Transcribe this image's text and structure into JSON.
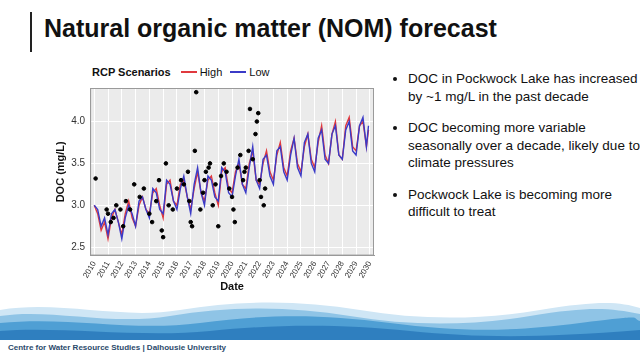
{
  "slide": {
    "title": "Natural organic matter (NOM) forecast",
    "bullets": [
      "DOC in Pockwock Lake has increased by ~1 mg/L in the past decade",
      "DOC becoming more variable seasonally over a decade, likely due to climate pressures",
      "Pockwock Lake is becoming more difficult to treat"
    ],
    "footer": "Centre for Water Resource Studies | Dalhousie University"
  },
  "chart_data": {
    "type": "line",
    "legend_title": "RCP Scenarios",
    "legend": "top",
    "x_label": "Date",
    "y_label": "DOC (mg/L)",
    "grid": true,
    "xlim": [
      2009.7,
      2030.3
    ],
    "xticks": [
      2010,
      2011,
      2012,
      2013,
      2014,
      2015,
      2016,
      2017,
      2018,
      2019,
      2020,
      2021,
      2022,
      2023,
      2024,
      2025,
      2026,
      2027,
      2028,
      2029,
      2030
    ],
    "ylim": [
      2.4,
      4.4
    ],
    "yticks": [
      2.5,
      {
        "value": 3,
        "label": "3.0"
      },
      3.5,
      {
        "value": 4,
        "label": "4.0"
      }
    ],
    "x": [
      2010,
      2010.25,
      2010.5,
      2010.75,
      2011,
      2011.25,
      2011.5,
      2011.75,
      2012,
      2012.25,
      2012.5,
      2012.75,
      2013,
      2013.25,
      2013.5,
      2013.75,
      2014,
      2014.25,
      2014.5,
      2014.75,
      2015,
      2015.25,
      2015.5,
      2015.75,
      2016,
      2016.25,
      2016.5,
      2016.75,
      2017,
      2017.25,
      2017.5,
      2017.75,
      2018,
      2018.25,
      2018.5,
      2018.75,
      2019,
      2019.25,
      2019.5,
      2019.75,
      2020,
      2020.25,
      2020.5,
      2020.75,
      2021,
      2021.25,
      2021.5,
      2021.75,
      2022,
      2022.25,
      2022.5,
      2022.75,
      2023,
      2023.25,
      2023.5,
      2023.75,
      2024,
      2024.25,
      2024.5,
      2024.75,
      2025,
      2025.25,
      2025.5,
      2025.75,
      2026,
      2026.25,
      2026.5,
      2026.75,
      2027,
      2027.25,
      2027.5,
      2027.75,
      2028,
      2028.25,
      2028.5,
      2028.75,
      2029,
      2029.25,
      2029.5,
      2029.75,
      2029.9
    ],
    "series": [
      {
        "name": "High",
        "color": "#e0393e",
        "type": "line",
        "line_style": "solid",
        "values": [
          3.0,
          2.9,
          2.7,
          2.8,
          2.6,
          2.85,
          2.95,
          2.8,
          2.65,
          2.9,
          3.05,
          2.85,
          2.75,
          3.0,
          3.1,
          2.95,
          2.9,
          3.15,
          3.2,
          3.0,
          2.85,
          3.25,
          3.3,
          3.05,
          3.0,
          3.25,
          3.3,
          3.1,
          2.95,
          3.2,
          3.4,
          3.15,
          3.05,
          3.3,
          3.35,
          3.15,
          3.0,
          3.4,
          3.45,
          3.2,
          3.15,
          3.4,
          3.5,
          3.25,
          3.2,
          3.5,
          3.65,
          3.3,
          3.25,
          3.5,
          3.65,
          3.4,
          3.3,
          3.6,
          3.75,
          3.45,
          3.35,
          3.65,
          3.8,
          3.5,
          3.4,
          3.7,
          3.85,
          3.55,
          3.45,
          3.75,
          3.95,
          3.6,
          3.5,
          3.85,
          4.0,
          3.6,
          3.55,
          3.95,
          4.05,
          3.7,
          3.65,
          3.95,
          4.0,
          3.7,
          3.9
        ]
      },
      {
        "name": "Low",
        "color": "#3b3bc7",
        "type": "line",
        "line_style": "solid",
        "values": [
          3.0,
          2.95,
          2.75,
          2.85,
          2.65,
          2.9,
          2.95,
          2.8,
          2.6,
          2.85,
          3.0,
          2.9,
          2.75,
          3.05,
          3.1,
          2.95,
          2.85,
          3.2,
          3.15,
          2.95,
          2.9,
          3.3,
          3.25,
          3.05,
          2.95,
          3.2,
          3.35,
          3.1,
          2.9,
          3.25,
          3.45,
          3.15,
          3.0,
          3.35,
          3.3,
          3.1,
          3.05,
          3.45,
          3.4,
          3.15,
          3.1,
          3.35,
          3.55,
          3.25,
          3.15,
          3.45,
          3.7,
          3.3,
          3.2,
          3.55,
          3.6,
          3.35,
          3.25,
          3.65,
          3.7,
          3.4,
          3.3,
          3.6,
          3.8,
          3.45,
          3.35,
          3.75,
          3.85,
          3.5,
          3.4,
          3.8,
          3.9,
          3.55,
          3.5,
          3.85,
          3.95,
          3.6,
          3.55,
          3.9,
          4.0,
          3.65,
          3.6,
          3.95,
          4.05,
          3.7,
          3.95
        ]
      },
      {
        "color": "#000000",
        "type": "scatter",
        "marker": "circle",
        "x": [
          2010.1,
          2010.9,
          2011.0,
          2011.2,
          2011.4,
          2011.6,
          2011.9,
          2012.1,
          2012.3,
          2012.6,
          2012.9,
          2013.3,
          2013.6,
          2014.0,
          2014.2,
          2014.5,
          2014.7,
          2014.9,
          2015.0,
          2015.2,
          2015.4,
          2015.7,
          2016.0,
          2016.3,
          2016.5,
          2016.8,
          2016.9,
          2017.0,
          2017.1,
          2017.3,
          2017.4,
          2017.7,
          2017.9,
          2018.0,
          2018.1,
          2018.3,
          2018.4,
          2018.6,
          2018.8,
          2019.0,
          2019.2,
          2019.4,
          2019.6,
          2019.8,
          2020.0,
          2020.1,
          2020.2,
          2020.4,
          2020.6,
          2020.8,
          2020.9,
          2021.0,
          2021.2,
          2021.3,
          2021.5,
          2021.7,
          2021.8,
          2021.9,
          2022.0,
          2022.1,
          2022.3,
          2022.4
        ],
        "values": [
          3.32,
          2.95,
          2.9,
          2.8,
          2.85,
          3.0,
          2.95,
          2.75,
          3.05,
          2.95,
          3.25,
          3.1,
          3.2,
          2.9,
          2.8,
          3.05,
          3.3,
          2.7,
          2.62,
          3.5,
          3.0,
          2.95,
          3.2,
          3.3,
          3.25,
          3.4,
          3.05,
          2.8,
          2.75,
          3.65,
          4.35,
          2.95,
          3.15,
          3.3,
          3.4,
          3.45,
          3.5,
          3.0,
          3.25,
          2.75,
          3.35,
          3.5,
          3.4,
          3.2,
          3.1,
          2.95,
          2.8,
          3.45,
          3.6,
          3.3,
          3.4,
          3.45,
          3.65,
          4.15,
          3.55,
          3.85,
          4.0,
          4.1,
          3.3,
          3.1,
          3.0,
          3.2
        ]
      }
    ]
  }
}
